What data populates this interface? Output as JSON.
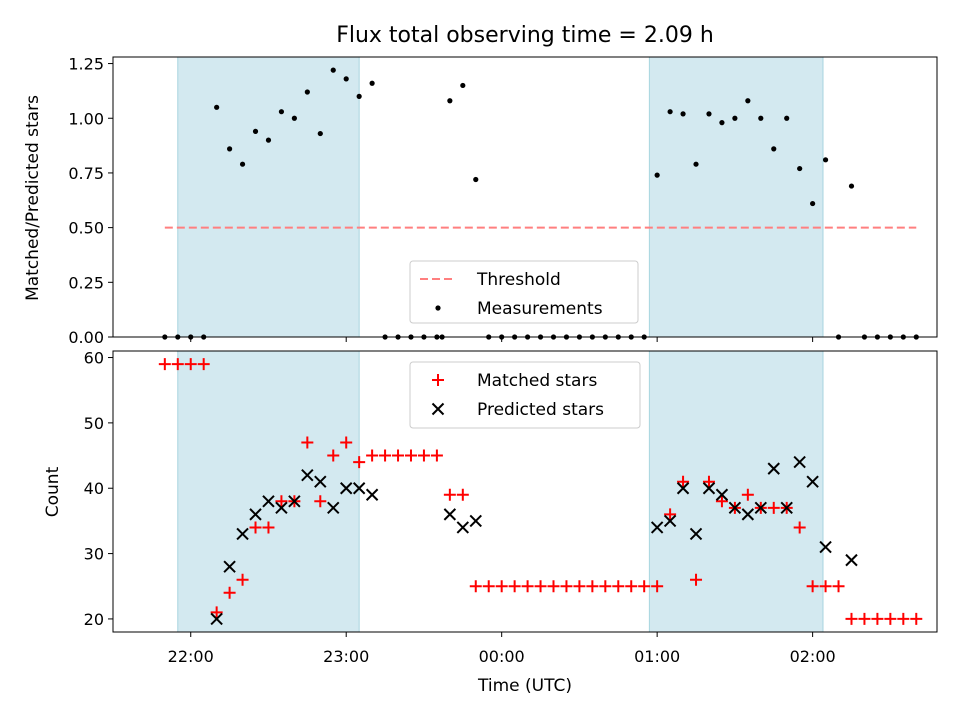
{
  "chart_data": [
    {
      "type": "scatter",
      "panel": "top",
      "title": "Flux total observing time = 2.09 h",
      "xlabel": "",
      "ylabel": "Matched/Predicted stars",
      "ylim": [
        0,
        1.28
      ],
      "yticks": [
        0,
        0.25,
        0.5,
        0.75,
        1.0,
        1.25
      ],
      "ytick_labels": [
        "0.00",
        "0.25",
        "0.50",
        "0.75",
        "1.00",
        "1.25"
      ],
      "x_axis": "time (UTC)",
      "shaded_intervals": [
        [
          "21:55",
          "23:05"
        ],
        [
          "00:57",
          "02:04"
        ]
      ],
      "threshold": {
        "name": "Threshold",
        "value": 0.5,
        "x_range": [
          "21:50",
          "02:40"
        ],
        "color": "#ff7f7f",
        "style": "dashed"
      },
      "series": [
        {
          "name": "Measurements",
          "color": "#000000",
          "marker": "dot",
          "points": [
            [
              "21:50",
              0
            ],
            [
              "21:55",
              0
            ],
            [
              "22:00",
              0
            ],
            [
              "22:05",
              0
            ],
            [
              "22:10",
              1.05
            ],
            [
              "22:15",
              0.86
            ],
            [
              "22:20",
              0.79
            ],
            [
              "22:25",
              0.94
            ],
            [
              "22:30",
              0.9
            ],
            [
              "22:35",
              1.03
            ],
            [
              "22:40",
              1.0
            ],
            [
              "22:45",
              1.12
            ],
            [
              "22:50",
              0.93
            ],
            [
              "22:55",
              1.22
            ],
            [
              "23:00",
              1.18
            ],
            [
              "23:05",
              1.1
            ],
            [
              "23:10",
              1.16
            ],
            [
              "23:15",
              0
            ],
            [
              "23:20",
              0
            ],
            [
              "23:25",
              0
            ],
            [
              "23:30",
              0
            ],
            [
              "23:35",
              0
            ],
            [
              "23:37",
              0
            ],
            [
              "23:40",
              1.08
            ],
            [
              "23:45",
              1.15
            ],
            [
              "23:50",
              0.72
            ],
            [
              "23:55",
              0
            ],
            [
              "00:00",
              0
            ],
            [
              "00:05",
              0
            ],
            [
              "00:10",
              0
            ],
            [
              "00:15",
              0
            ],
            [
              "00:20",
              0
            ],
            [
              "00:25",
              0
            ],
            [
              "00:30",
              0
            ],
            [
              "00:35",
              0
            ],
            [
              "00:40",
              0
            ],
            [
              "00:45",
              0
            ],
            [
              "00:50",
              0
            ],
            [
              "00:55",
              0
            ],
            [
              "01:00",
              0.74
            ],
            [
              "01:05",
              1.03
            ],
            [
              "01:10",
              1.02
            ],
            [
              "01:15",
              0.79
            ],
            [
              "01:20",
              1.02
            ],
            [
              "01:25",
              0.98
            ],
            [
              "01:30",
              1.0
            ],
            [
              "01:35",
              1.08
            ],
            [
              "01:40",
              1.0
            ],
            [
              "01:45",
              0.86
            ],
            [
              "01:50",
              1.0
            ],
            [
              "01:55",
              0.77
            ],
            [
              "02:00",
              0.61
            ],
            [
              "02:05",
              0.81
            ],
            [
              "02:10",
              0
            ],
            [
              "02:15",
              0.69
            ],
            [
              "02:20",
              0
            ],
            [
              "02:25",
              0
            ],
            [
              "02:30",
              0
            ],
            [
              "02:35",
              0
            ],
            [
              "02:40",
              0
            ]
          ]
        }
      ],
      "legend": {
        "placement": "bottom-center",
        "entries": [
          "Threshold",
          "Measurements"
        ]
      },
      "grid": false
    },
    {
      "type": "scatter",
      "panel": "bottom",
      "title": "",
      "xlabel": "Time (UTC)",
      "ylabel": "Count",
      "ylim": [
        18,
        61
      ],
      "yticks": [
        20,
        30,
        40,
        50,
        60
      ],
      "ytick_labels": [
        "20",
        "30",
        "40",
        "50",
        "60"
      ],
      "xticks": [
        "22:00",
        "23:00",
        "00:00",
        "01:00",
        "02:00"
      ],
      "shaded_intervals": [
        [
          "21:55",
          "23:05"
        ],
        [
          "00:57",
          "02:04"
        ]
      ],
      "series": [
        {
          "name": "Matched stars",
          "color": "#ff0000",
          "marker": "+",
          "points": [
            [
              "21:50",
              59
            ],
            [
              "21:55",
              59
            ],
            [
              "22:00",
              59
            ],
            [
              "22:05",
              59
            ],
            [
              "22:10",
              21
            ],
            [
              "22:15",
              24
            ],
            [
              "22:20",
              26
            ],
            [
              "22:25",
              34
            ],
            [
              "22:30",
              34
            ],
            [
              "22:35",
              38
            ],
            [
              "22:40",
              38
            ],
            [
              "22:45",
              47
            ],
            [
              "22:50",
              38
            ],
            [
              "22:55",
              45
            ],
            [
              "23:00",
              47
            ],
            [
              "23:05",
              44
            ],
            [
              "23:10",
              45
            ],
            [
              "23:15",
              45
            ],
            [
              "23:20",
              45
            ],
            [
              "23:25",
              45
            ],
            [
              "23:30",
              45
            ],
            [
              "23:35",
              45
            ],
            [
              "23:40",
              39
            ],
            [
              "23:45",
              39
            ],
            [
              "23:50",
              25
            ],
            [
              "23:55",
              25
            ],
            [
              "00:00",
              25
            ],
            [
              "00:05",
              25
            ],
            [
              "00:10",
              25
            ],
            [
              "00:15",
              25
            ],
            [
              "00:20",
              25
            ],
            [
              "00:25",
              25
            ],
            [
              "00:30",
              25
            ],
            [
              "00:35",
              25
            ],
            [
              "00:40",
              25
            ],
            [
              "00:45",
              25
            ],
            [
              "00:50",
              25
            ],
            [
              "00:55",
              25
            ],
            [
              "01:00",
              25
            ],
            [
              "01:05",
              36
            ],
            [
              "01:10",
              41
            ],
            [
              "01:15",
              26
            ],
            [
              "01:20",
              41
            ],
            [
              "01:25",
              38
            ],
            [
              "01:30",
              37
            ],
            [
              "01:35",
              39
            ],
            [
              "01:40",
              37
            ],
            [
              "01:45",
              37
            ],
            [
              "01:50",
              37
            ],
            [
              "01:55",
              34
            ],
            [
              "02:00",
              25
            ],
            [
              "02:05",
              25
            ],
            [
              "02:10",
              25
            ],
            [
              "02:15",
              20
            ],
            [
              "02:20",
              20
            ],
            [
              "02:25",
              20
            ],
            [
              "02:30",
              20
            ],
            [
              "02:35",
              20
            ],
            [
              "02:40",
              20
            ]
          ]
        },
        {
          "name": "Predicted stars",
          "color": "#000000",
          "marker": "x",
          "points": [
            [
              "22:10",
              20
            ],
            [
              "22:15",
              28
            ],
            [
              "22:20",
              33
            ],
            [
              "22:25",
              36
            ],
            [
              "22:30",
              38
            ],
            [
              "22:35",
              37
            ],
            [
              "22:40",
              38
            ],
            [
              "22:45",
              42
            ],
            [
              "22:50",
              41
            ],
            [
              "22:55",
              37
            ],
            [
              "23:00",
              40
            ],
            [
              "23:05",
              40
            ],
            [
              "23:10",
              39
            ],
            [
              "23:40",
              36
            ],
            [
              "23:45",
              34
            ],
            [
              "23:50",
              35
            ],
            [
              "01:00",
              34
            ],
            [
              "01:05",
              35
            ],
            [
              "01:10",
              40
            ],
            [
              "01:15",
              33
            ],
            [
              "01:20",
              40
            ],
            [
              "01:25",
              39
            ],
            [
              "01:30",
              37
            ],
            [
              "01:35",
              36
            ],
            [
              "01:40",
              37
            ],
            [
              "01:45",
              43
            ],
            [
              "01:50",
              37
            ],
            [
              "01:55",
              44
            ],
            [
              "02:00",
              41
            ],
            [
              "02:05",
              31
            ],
            [
              "02:15",
              29
            ]
          ]
        }
      ],
      "legend": {
        "placement": "top-center",
        "entries": [
          "Matched stars",
          "Predicted stars"
        ]
      },
      "grid": false
    }
  ],
  "colors": {
    "shade": "#d3e9f0",
    "shade_edge": "#a8d5df",
    "threshold": "#ff7f7f",
    "matched": "#ff0000",
    "predicted": "#000000"
  }
}
